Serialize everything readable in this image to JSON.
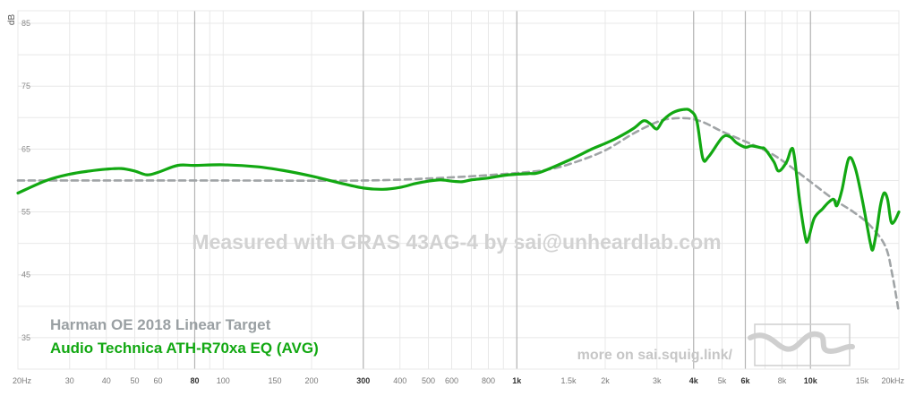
{
  "watermark": "Measured with GRAS 43AG-4 by sai@unheardlab.com",
  "footer_link": "more on sai.squig.link/",
  "colors": {
    "target": "#a0a4a6",
    "measurement": "#12a812",
    "grid_minor": "#e8e8e8",
    "grid_major": "#b4b4b4",
    "watermark": "#d2d2d2",
    "target_label": "#9aa0a3",
    "footer": "#c6c6c6",
    "logo": "#cfcfcf"
  },
  "chart_data": {
    "type": "line",
    "x_scale": "log",
    "xlim": [
      20,
      20000
    ],
    "ylim": [
      30,
      87
    ],
    "ylabel": "dB",
    "grid": true,
    "y_ticks": [
      35,
      45,
      55,
      65,
      75,
      85
    ],
    "x_ticks": [
      {
        "value": 20,
        "label": "20Hz",
        "major": false
      },
      {
        "value": 30,
        "label": "30",
        "major": false
      },
      {
        "value": 40,
        "label": "40",
        "major": false
      },
      {
        "value": 50,
        "label": "50",
        "major": false
      },
      {
        "value": 60,
        "label": "60",
        "major": false
      },
      {
        "value": 80,
        "label": "80",
        "major": true
      },
      {
        "value": 100,
        "label": "100",
        "major": false
      },
      {
        "value": 150,
        "label": "150",
        "major": false
      },
      {
        "value": 200,
        "label": "200",
        "major": false
      },
      {
        "value": 300,
        "label": "300",
        "major": true
      },
      {
        "value": 400,
        "label": "400",
        "major": false
      },
      {
        "value": 500,
        "label": "500",
        "major": false
      },
      {
        "value": 600,
        "label": "600",
        "major": false
      },
      {
        "value": 800,
        "label": "800",
        "major": false
      },
      {
        "value": 1000,
        "label": "1k",
        "major": true
      },
      {
        "value": 1500,
        "label": "1.5k",
        "major": false
      },
      {
        "value": 2000,
        "label": "2k",
        "major": false
      },
      {
        "value": 3000,
        "label": "3k",
        "major": false
      },
      {
        "value": 4000,
        "label": "4k",
        "major": true
      },
      {
        "value": 5000,
        "label": "5k",
        "major": false
      },
      {
        "value": 6000,
        "label": "6k",
        "major": true
      },
      {
        "value": 8000,
        "label": "8k",
        "major": false
      },
      {
        "value": 10000,
        "label": "10k",
        "major": true
      },
      {
        "value": 15000,
        "label": "15k",
        "major": false
      },
      {
        "value": 20000,
        "label": "20kHz",
        "major": false
      }
    ],
    "series": [
      {
        "name": "Harman OE 2018 Linear Target",
        "style": "dashed",
        "points": [
          [
            20,
            60
          ],
          [
            100,
            60
          ],
          [
            300,
            60
          ],
          [
            600,
            60.5
          ],
          [
            1000,
            61.2
          ],
          [
            1300,
            61.8
          ],
          [
            1600,
            63
          ],
          [
            2000,
            64.8
          ],
          [
            2500,
            67.5
          ],
          [
            3000,
            69.3
          ],
          [
            3300,
            69.8
          ],
          [
            3800,
            69.9
          ],
          [
            4300,
            69.3
          ],
          [
            5000,
            67.8
          ],
          [
            6000,
            66.2
          ],
          [
            7000,
            64.8
          ],
          [
            8000,
            63.2
          ],
          [
            10000,
            59.8
          ],
          [
            12000,
            57
          ],
          [
            14000,
            55
          ],
          [
            16000,
            52.8
          ],
          [
            18000,
            49.5
          ],
          [
            19000,
            45
          ],
          [
            20000,
            39
          ]
        ]
      },
      {
        "name": "Audio Technica ATH-R70xa EQ (AVG)",
        "style": "solid",
        "points": [
          [
            20,
            58
          ],
          [
            25,
            60
          ],
          [
            30,
            61
          ],
          [
            35,
            61.5
          ],
          [
            40,
            61.8
          ],
          [
            45,
            61.9
          ],
          [
            50,
            61.5
          ],
          [
            55,
            60.9
          ],
          [
            60,
            61.3
          ],
          [
            70,
            62.4
          ],
          [
            80,
            62.4
          ],
          [
            100,
            62.5
          ],
          [
            130,
            62.2
          ],
          [
            160,
            61.6
          ],
          [
            200,
            60.7
          ],
          [
            250,
            59.6
          ],
          [
            300,
            58.8
          ],
          [
            350,
            58.6
          ],
          [
            400,
            58.9
          ],
          [
            450,
            59.5
          ],
          [
            500,
            59.9
          ],
          [
            550,
            60.1
          ],
          [
            600,
            59.9
          ],
          [
            650,
            59.8
          ],
          [
            700,
            60.1
          ],
          [
            800,
            60.4
          ],
          [
            900,
            60.8
          ],
          [
            1000,
            61
          ],
          [
            1100,
            61.1
          ],
          [
            1200,
            61.3
          ],
          [
            1500,
            63.2
          ],
          [
            1800,
            65
          ],
          [
            2000,
            65.9
          ],
          [
            2200,
            66.8
          ],
          [
            2500,
            68.3
          ],
          [
            2700,
            69.5
          ],
          [
            2850,
            69
          ],
          [
            3000,
            68.2
          ],
          [
            3150,
            69.6
          ],
          [
            3400,
            70.8
          ],
          [
            3700,
            71.3
          ],
          [
            3900,
            71.1
          ],
          [
            4100,
            69.5
          ],
          [
            4300,
            63.5
          ],
          [
            4500,
            63.8
          ],
          [
            5000,
            66.8
          ],
          [
            5300,
            67
          ],
          [
            5600,
            66
          ],
          [
            6000,
            65.3
          ],
          [
            6300,
            65.5
          ],
          [
            6800,
            65.2
          ],
          [
            7000,
            65
          ],
          [
            7500,
            63
          ],
          [
            7800,
            61.5
          ],
          [
            8300,
            63
          ],
          [
            8600,
            65
          ],
          [
            8800,
            64
          ],
          [
            9200,
            56.5
          ],
          [
            9600,
            51
          ],
          [
            9800,
            50.5
          ],
          [
            10300,
            54
          ],
          [
            11000,
            55.5
          ],
          [
            11500,
            56.5
          ],
          [
            12000,
            57
          ],
          [
            12300,
            56
          ],
          [
            12800,
            58.5
          ],
          [
            13500,
            63.5
          ],
          [
            14200,
            62
          ],
          [
            15000,
            57
          ],
          [
            15700,
            52
          ],
          [
            16000,
            50
          ],
          [
            16300,
            49
          ],
          [
            16800,
            52
          ],
          [
            17300,
            56
          ],
          [
            17800,
            58
          ],
          [
            18300,
            57
          ],
          [
            18800,
            53.5
          ],
          [
            19300,
            53.5
          ],
          [
            20000,
            55
          ]
        ]
      }
    ]
  }
}
